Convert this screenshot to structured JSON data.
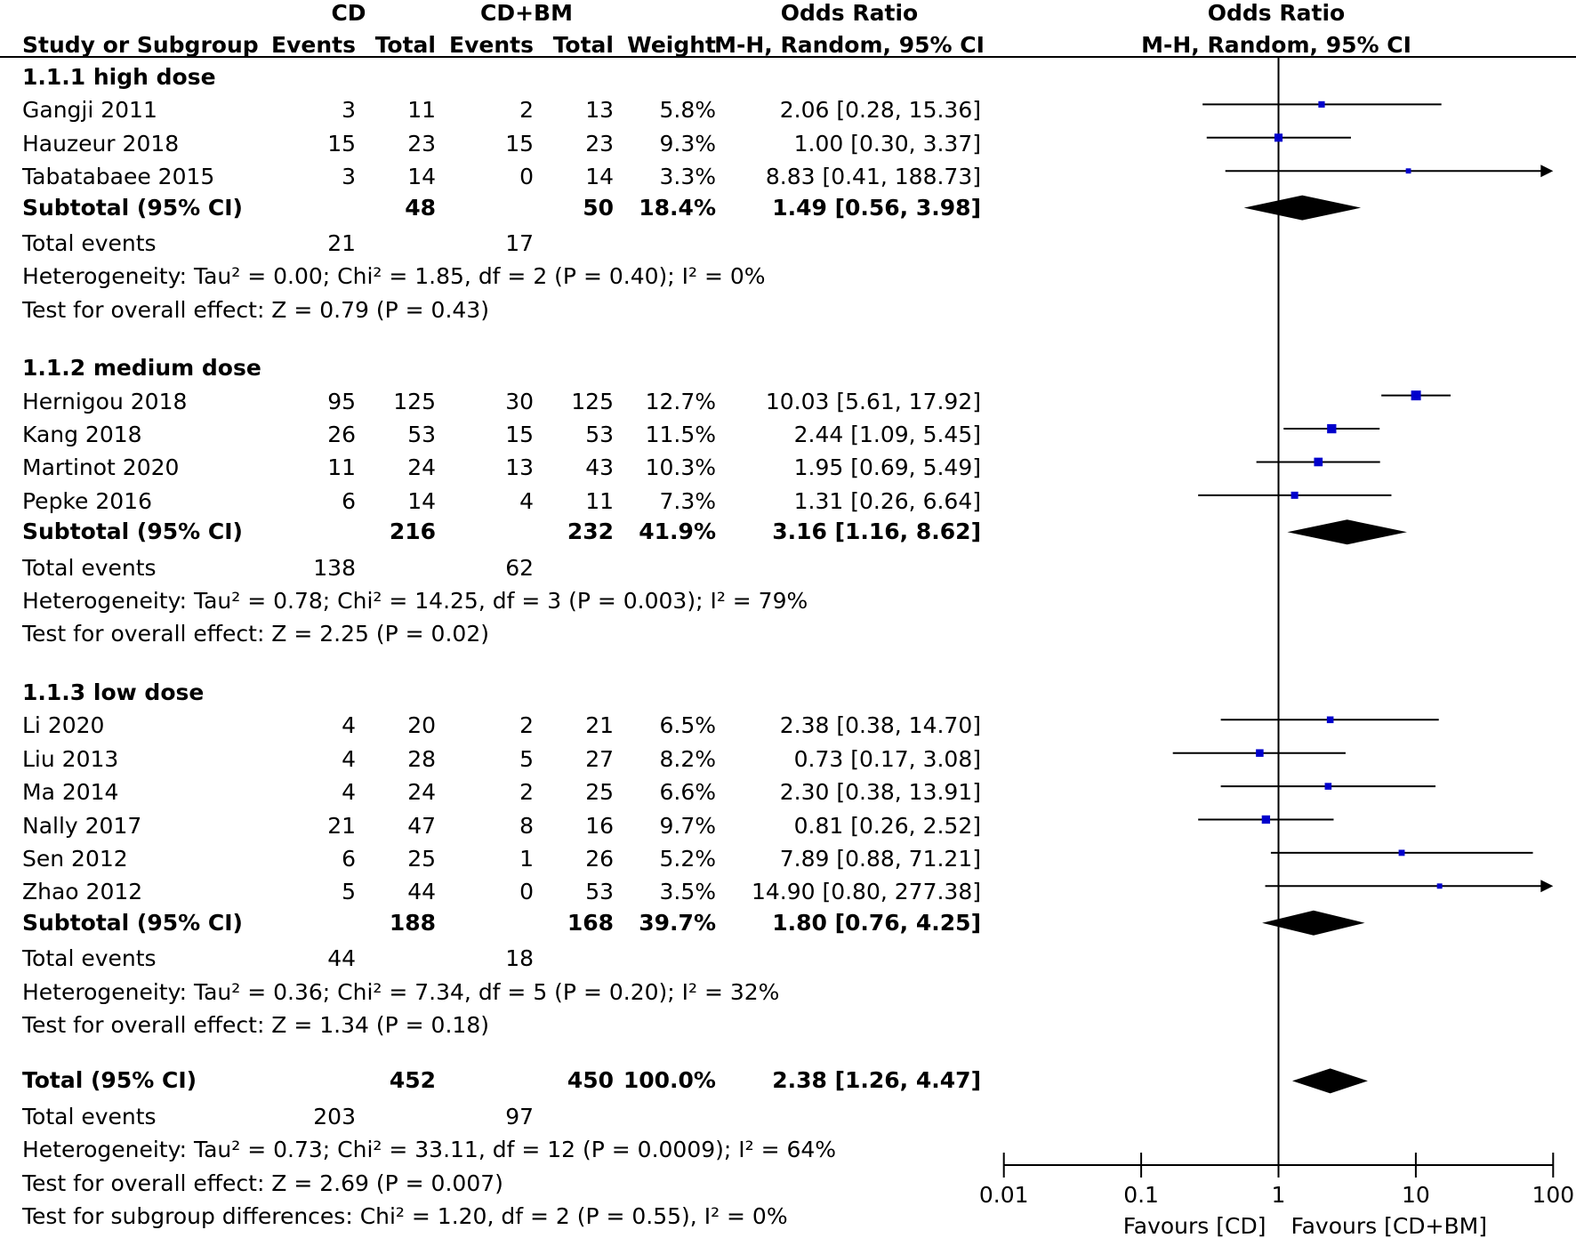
{
  "header": {
    "group1": "CD",
    "group2": "CD+BM",
    "or_title": "Odds Ratio",
    "or_method": "M-H, Random, 95% CI",
    "plot_title": "Odds Ratio",
    "plot_method": "M-H, Random, 95% CI",
    "col_study": "Study or Subgroup",
    "col_events1": "Events",
    "col_total1": "Total",
    "col_events2": "Events",
    "col_total2": "Total",
    "col_weight": "Weight"
  },
  "subgroups": [
    {
      "title": "1.1.1 high dose",
      "studies": [
        {
          "name": "Gangji 2011",
          "e1": "3",
          "t1": "11",
          "e2": "2",
          "t2": "13",
          "weight": "5.8%",
          "ci": "2.06 [0.28, 15.36]"
        },
        {
          "name": "Hauzeur 2018",
          "e1": "15",
          "t1": "23",
          "e2": "15",
          "t2": "23",
          "weight": "9.3%",
          "ci": "1.00 [0.30, 3.37]"
        },
        {
          "name": "Tabatabaee 2015",
          "e1": "3",
          "t1": "14",
          "e2": "0",
          "t2": "14",
          "weight": "3.3%",
          "ci": "8.83 [0.41, 188.73]"
        }
      ],
      "subtotal": {
        "label": "Subtotal (95% CI)",
        "t1": "48",
        "t2": "50",
        "weight": "18.4%",
        "ci": "1.49 [0.56, 3.98]"
      },
      "total_events": {
        "label": "Total events",
        "e1": "21",
        "e2": "17"
      },
      "heterogeneity": "Heterogeneity: Tau² = 0.00; Chi² = 1.85, df = 2 (P = 0.40); I² = 0%",
      "overall": "Test for overall effect: Z = 0.79 (P = 0.43)"
    },
    {
      "title": "1.1.2 medium dose",
      "studies": [
        {
          "name": "Hernigou 2018",
          "e1": "95",
          "t1": "125",
          "e2": "30",
          "t2": "125",
          "weight": "12.7%",
          "ci": "10.03 [5.61, 17.92]"
        },
        {
          "name": "Kang 2018",
          "e1": "26",
          "t1": "53",
          "e2": "15",
          "t2": "53",
          "weight": "11.5%",
          "ci": "2.44 [1.09, 5.45]"
        },
        {
          "name": "Martinot 2020",
          "e1": "11",
          "t1": "24",
          "e2": "13",
          "t2": "43",
          "weight": "10.3%",
          "ci": "1.95 [0.69, 5.49]"
        },
        {
          "name": "Pepke 2016",
          "e1": "6",
          "t1": "14",
          "e2": "4",
          "t2": "11",
          "weight": "7.3%",
          "ci": "1.31 [0.26, 6.64]"
        }
      ],
      "subtotal": {
        "label": "Subtotal (95% CI)",
        "t1": "216",
        "t2": "232",
        "weight": "41.9%",
        "ci": "3.16 [1.16, 8.62]"
      },
      "total_events": {
        "label": "Total events",
        "e1": "138",
        "e2": "62"
      },
      "heterogeneity": "Heterogeneity: Tau² = 0.78; Chi² = 14.25, df = 3 (P = 0.003); I² = 79%",
      "overall": "Test for overall effect: Z = 2.25 (P = 0.02)"
    },
    {
      "title": "1.1.3 low dose",
      "studies": [
        {
          "name": "Li 2020",
          "e1": "4",
          "t1": "20",
          "e2": "2",
          "t2": "21",
          "weight": "6.5%",
          "ci": "2.38 [0.38, 14.70]"
        },
        {
          "name": "Liu 2013",
          "e1": "4",
          "t1": "28",
          "e2": "5",
          "t2": "27",
          "weight": "8.2%",
          "ci": "0.73 [0.17, 3.08]"
        },
        {
          "name": "Ma 2014",
          "e1": "4",
          "t1": "24",
          "e2": "2",
          "t2": "25",
          "weight": "6.6%",
          "ci": "2.30 [0.38, 13.91]"
        },
        {
          "name": "Nally 2017",
          "e1": "21",
          "t1": "47",
          "e2": "8",
          "t2": "16",
          "weight": "9.7%",
          "ci": "0.81 [0.26, 2.52]"
        },
        {
          "name": "Sen 2012",
          "e1": "6",
          "t1": "25",
          "e2": "1",
          "t2": "26",
          "weight": "5.2%",
          "ci": "7.89 [0.88, 71.21]"
        },
        {
          "name": "Zhao 2012",
          "e1": "5",
          "t1": "44",
          "e2": "0",
          "t2": "53",
          "weight": "3.5%",
          "ci": "14.90 [0.80, 277.38]"
        }
      ],
      "subtotal": {
        "label": "Subtotal (95% CI)",
        "t1": "188",
        "t2": "168",
        "weight": "39.7%",
        "ci": "1.80 [0.76, 4.25]"
      },
      "total_events": {
        "label": "Total events",
        "e1": "44",
        "e2": "18"
      },
      "heterogeneity": "Heterogeneity: Tau² = 0.36; Chi² = 7.34, df = 5 (P = 0.20); I² = 32%",
      "overall": "Test for overall effect: Z = 1.34 (P = 0.18)"
    }
  ],
  "total": {
    "label": "Total (95% CI)",
    "t1": "452",
    "t2": "450",
    "weight": "100.0%",
    "ci": "2.38 [1.26, 4.47]",
    "events_label": "Total events",
    "e1": "203",
    "e2": "97",
    "heterogeneity": "Heterogeneity: Tau² = 0.73; Chi² = 33.11, df = 12 (P = 0.0009); I² = 64%",
    "overall": "Test for overall effect: Z = 2.69 (P = 0.007)",
    "subgroup_diff": "Test for subgroup differences: Chi² = 1.20, df = 2 (P = 0.55), I² = 0%"
  },
  "axis": {
    "ticks": [
      "0.01",
      "0.1",
      "1",
      "10",
      "100"
    ],
    "left_label": "Favours [CD]",
    "right_label": "Favours [CD+BM]"
  },
  "chart_data": {
    "type": "forest",
    "title": "Odds Ratio",
    "xscale": "log",
    "xlim": [
      0.01,
      100
    ],
    "null_line": 1,
    "xlabel_left": "Favours [CD]",
    "xlabel_right": "Favours [CD+BM]",
    "studies": [
      {
        "name": "Gangji 2011",
        "or": 2.06,
        "lo": 0.28,
        "hi": 15.36,
        "weight": 5.8
      },
      {
        "name": "Hauzeur 2018",
        "or": 1.0,
        "lo": 0.3,
        "hi": 3.37,
        "weight": 9.3
      },
      {
        "name": "Tabatabaee 2015",
        "or": 8.83,
        "lo": 0.41,
        "hi": 188.73,
        "weight": 3.3
      },
      {
        "name": "Hernigou 2018",
        "or": 10.03,
        "lo": 5.61,
        "hi": 17.92,
        "weight": 12.7
      },
      {
        "name": "Kang 2018",
        "or": 2.44,
        "lo": 1.09,
        "hi": 5.45,
        "weight": 11.5
      },
      {
        "name": "Martinot 2020",
        "or": 1.95,
        "lo": 0.69,
        "hi": 5.49,
        "weight": 10.3
      },
      {
        "name": "Pepke 2016",
        "or": 1.31,
        "lo": 0.26,
        "hi": 6.64,
        "weight": 7.3
      },
      {
        "name": "Li 2020",
        "or": 2.38,
        "lo": 0.38,
        "hi": 14.7,
        "weight": 6.5
      },
      {
        "name": "Liu 2013",
        "or": 0.73,
        "lo": 0.17,
        "hi": 3.08,
        "weight": 8.2
      },
      {
        "name": "Ma 2014",
        "or": 2.3,
        "lo": 0.38,
        "hi": 13.91,
        "weight": 6.6
      },
      {
        "name": "Nally 2017",
        "or": 0.81,
        "lo": 0.26,
        "hi": 2.52,
        "weight": 9.7
      },
      {
        "name": "Sen 2012",
        "or": 7.89,
        "lo": 0.88,
        "hi": 71.21,
        "weight": 5.2
      },
      {
        "name": "Zhao 2012",
        "or": 14.9,
        "lo": 0.8,
        "hi": 277.38,
        "weight": 3.5
      }
    ],
    "pooled": [
      {
        "name": "Subtotal 1.1.1",
        "or": 1.49,
        "lo": 0.56,
        "hi": 3.98
      },
      {
        "name": "Subtotal 1.1.2",
        "or": 3.16,
        "lo": 1.16,
        "hi": 8.62
      },
      {
        "name": "Subtotal 1.1.3",
        "or": 1.8,
        "lo": 0.76,
        "hi": 4.25
      },
      {
        "name": "Total",
        "or": 2.38,
        "lo": 1.26,
        "hi": 4.47
      }
    ]
  },
  "colors": {
    "marker": "#0000cc",
    "line": "#000000",
    "diamond": "#000000"
  }
}
